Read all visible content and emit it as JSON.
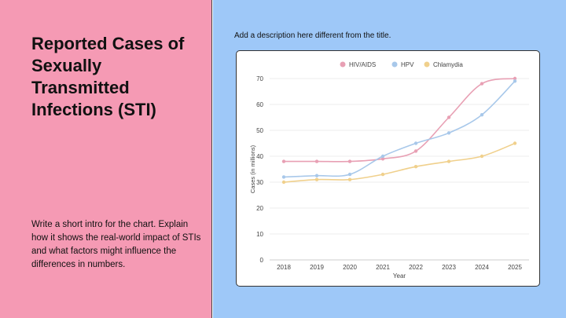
{
  "left": {
    "title": "Reported Cases of Sexually Transmitted Infections (STI)",
    "intro": "Write a short intro for the chart. Explain how it shows the real-world impact of STIs and what factors might influence the differences in numbers."
  },
  "right": {
    "description": "Add a description here different from the title."
  },
  "chart_data": {
    "type": "line",
    "xlabel": "Year",
    "ylabel": "Cases (in millions)",
    "categories": [
      "2018",
      "2019",
      "2020",
      "2021",
      "2022",
      "2023",
      "2024",
      "2025"
    ],
    "ylim": [
      0,
      70
    ],
    "yticks": [
      0,
      10,
      20,
      30,
      40,
      50,
      60,
      70
    ],
    "grid": true,
    "legend": "top",
    "smooth": true,
    "series": [
      {
        "name": "HIV/AIDS",
        "color": "#e8a0b4",
        "values": [
          38,
          38,
          38,
          39,
          42,
          55,
          68,
          70
        ]
      },
      {
        "name": "HPV",
        "color": "#a8c8ea",
        "values": [
          32,
          32.5,
          33,
          40,
          45,
          49,
          56,
          69
        ]
      },
      {
        "name": "Chlamydia",
        "color": "#f0d08c",
        "values": [
          30,
          31,
          31,
          33,
          36,
          38,
          40,
          45
        ]
      }
    ]
  }
}
